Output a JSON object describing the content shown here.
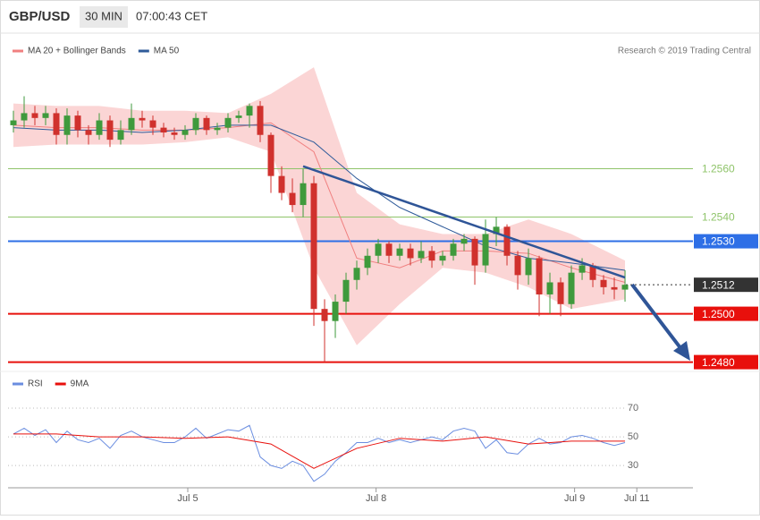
{
  "header": {
    "symbol": "GBP/USD",
    "interval": "30 MIN",
    "time": "07:00:43 CET"
  },
  "chart_data": [
    {
      "type": "candlestick",
      "source": "Research © 2019 Trading Central",
      "xlim": [
        -0.5,
        63.33
      ],
      "ylim": [
        1.2478,
        1.2615
      ],
      "xticks": [
        {
          "value": 16.25,
          "label": "Jul 5"
        },
        {
          "value": 33.8,
          "label": "Jul 8"
        },
        {
          "value": 52.3,
          "label": "Jul 9"
        },
        {
          "value": 58.1,
          "label": "Jul 11"
        }
      ],
      "up_color": "#3f9a3c",
      "down_color": "#d0312d",
      "candles": {
        "x": [
          0,
          1,
          2,
          3,
          4,
          5,
          6,
          7,
          8,
          9,
          10,
          11,
          12,
          13,
          14,
          15,
          16,
          17,
          18,
          19,
          20,
          21,
          22,
          23,
          24,
          25,
          26,
          27,
          28,
          29,
          30,
          31,
          32,
          33,
          34,
          35,
          36,
          37,
          38,
          39,
          40,
          41,
          42,
          43,
          44,
          45,
          46,
          47,
          48,
          49,
          50,
          51,
          52,
          53,
          54,
          55,
          56,
          57
        ],
        "open": [
          1.2578,
          1.258,
          1.2583,
          1.2581,
          1.2583,
          1.2574,
          1.2582,
          1.2576,
          1.2574,
          1.258,
          1.2572,
          1.2576,
          1.2581,
          1.258,
          1.2577,
          1.2575,
          1.2574,
          1.2576,
          1.2581,
          1.2576,
          1.2577,
          1.2581,
          1.2582,
          1.2586,
          1.2574,
          1.2557,
          1.255,
          1.2545,
          1.2554,
          1.2502,
          1.2497,
          1.2505,
          1.2514,
          1.2519,
          1.2524,
          1.2529,
          1.2524,
          1.2527,
          1.2523,
          1.2526,
          1.2522,
          1.2524,
          1.2529,
          1.2531,
          1.252,
          1.2533,
          1.2536,
          1.2524,
          1.2516,
          1.2523,
          1.2508,
          1.2513,
          1.2504,
          1.2517,
          1.252,
          1.2514,
          1.2511,
          1.251
        ],
        "high": [
          1.2584,
          1.259,
          1.2586,
          1.2586,
          1.2585,
          1.2585,
          1.2584,
          1.2578,
          1.2583,
          1.2582,
          1.258,
          1.2587,
          1.2584,
          1.2582,
          1.2579,
          1.2577,
          1.2578,
          1.2583,
          1.2582,
          1.2579,
          1.2583,
          1.2584,
          1.2587,
          1.2588,
          1.2575,
          1.2561,
          1.2556,
          1.256,
          1.2557,
          1.2506,
          1.2508,
          1.2517,
          1.2522,
          1.2527,
          1.2531,
          1.253,
          1.2529,
          1.2529,
          1.253,
          1.2528,
          1.2526,
          1.2531,
          1.2533,
          1.2532,
          1.2539,
          1.254,
          1.2537,
          1.2526,
          1.2527,
          1.2524,
          1.2517,
          1.2515,
          1.252,
          1.2523,
          1.2521,
          1.2516,
          1.2515,
          1.2518
        ],
        "low": [
          1.2575,
          1.2577,
          1.2578,
          1.2578,
          1.257,
          1.257,
          1.2573,
          1.257,
          1.2572,
          1.2569,
          1.257,
          1.2574,
          1.2577,
          1.2574,
          1.2573,
          1.2572,
          1.2572,
          1.2574,
          1.2574,
          1.2574,
          1.2575,
          1.2579,
          1.2577,
          1.2571,
          1.255,
          1.2547,
          1.2542,
          1.254,
          1.2495,
          1.248,
          1.249,
          1.25,
          1.251,
          1.2516,
          1.2521,
          1.2521,
          1.2522,
          1.252,
          1.2521,
          1.2519,
          1.252,
          1.2522,
          1.2526,
          1.2512,
          1.2517,
          1.2528,
          1.252,
          1.251,
          1.2512,
          1.2499,
          1.25,
          1.2499,
          1.2502,
          1.2514,
          1.2511,
          1.2508,
          1.2506,
          1.2505
        ],
        "close": [
          1.258,
          1.2583,
          1.2581,
          1.2583,
          1.2574,
          1.2582,
          1.2576,
          1.2574,
          1.258,
          1.2572,
          1.2576,
          1.2581,
          1.258,
          1.2577,
          1.2575,
          1.2574,
          1.2576,
          1.2581,
          1.2576,
          1.2577,
          1.2581,
          1.2582,
          1.2586,
          1.2574,
          1.2557,
          1.255,
          1.2545,
          1.2554,
          1.2502,
          1.2497,
          1.2505,
          1.2514,
          1.2519,
          1.2524,
          1.2529,
          1.2524,
          1.2527,
          1.2523,
          1.2526,
          1.2522,
          1.2524,
          1.2529,
          1.2531,
          1.252,
          1.2533,
          1.2536,
          1.2524,
          1.2516,
          1.2523,
          1.2508,
          1.2513,
          1.2504,
          1.2517,
          1.252,
          1.2514,
          1.2511,
          1.251,
          1.2512
        ]
      },
      "series": [
        {
          "name": "MA 20 + Bollinger Bands",
          "color": "#f08080",
          "band_color": "#fbd5d5",
          "x": [
            0,
            4,
            8,
            12,
            16,
            20,
            24,
            28,
            32,
            36,
            40,
            44,
            48,
            52,
            57
          ],
          "values": [
            1.2578,
            1.2577,
            1.2577,
            1.2576,
            1.2576,
            1.2577,
            1.2579,
            1.2567,
            1.2523,
            1.2519,
            1.2526,
            1.2526,
            1.2525,
            1.2519,
            1.2513
          ],
          "upper": [
            1.2587,
            1.2586,
            1.2586,
            1.2584,
            1.2584,
            1.2583,
            1.2591,
            1.2602,
            1.255,
            1.2537,
            1.2533,
            1.2533,
            1.2539,
            1.2533,
            1.2522
          ],
          "lower": [
            1.2569,
            1.257,
            1.257,
            1.257,
            1.2571,
            1.2573,
            1.2567,
            1.2519,
            1.2487,
            1.2504,
            1.2519,
            1.2517,
            1.2511,
            1.2502,
            1.2506
          ]
        },
        {
          "name": "MA 50",
          "color": "#2f5b9a",
          "x": [
            0,
            4,
            8,
            12,
            16,
            20,
            24,
            28,
            32,
            36,
            40,
            44,
            48,
            52,
            57
          ],
          "values": [
            1.2577,
            1.2576,
            1.2576,
            1.2575,
            1.2576,
            1.2578,
            1.2578,
            1.2571,
            1.2556,
            1.2544,
            1.2536,
            1.2528,
            1.2523,
            1.2521,
            1.2518
          ]
        }
      ],
      "trendline": {
        "x": [
          27,
          57
        ],
        "values": [
          1.2561,
          1.2515
        ],
        "color": "#2f5597"
      },
      "levels": [
        {
          "value": 1.256,
          "label": "1.2560",
          "color": "#8fc46a",
          "boxed": false
        },
        {
          "value": 1.254,
          "label": "1.2540",
          "color": "#8fc46a",
          "boxed": false
        },
        {
          "value": 1.253,
          "label": "1.2530",
          "color": "#2e6fe6",
          "boxed": true
        },
        {
          "value": 1.2512,
          "label": "1.2512",
          "color": "#333333",
          "boxed": true,
          "dotted": true
        },
        {
          "value": 1.25,
          "label": "1.2500",
          "color": "#e8100c",
          "boxed": true
        },
        {
          "value": 1.248,
          "label": "1.2480",
          "color": "#e8100c",
          "boxed": true
        }
      ]
    },
    {
      "type": "line",
      "xlim": [
        -0.5,
        63.33
      ],
      "ylim": [
        14.5,
        80
      ],
      "yticks": [
        30,
        50,
        70
      ],
      "series": [
        {
          "name": "RSI",
          "color": "#6a8de0",
          "x": [
            0,
            1,
            2,
            3,
            4,
            5,
            6,
            7,
            8,
            9,
            10,
            11,
            12,
            13,
            14,
            15,
            16,
            17,
            18,
            19,
            20,
            21,
            22,
            23,
            24,
            25,
            26,
            27,
            28,
            29,
            30,
            31,
            32,
            33,
            34,
            35,
            36,
            37,
            38,
            39,
            40,
            41,
            42,
            43,
            44,
            45,
            46,
            47,
            48,
            49,
            50,
            51,
            52,
            53,
            54,
            55,
            56,
            57
          ],
          "values": [
            52,
            56,
            51,
            55,
            46,
            54,
            48,
            46,
            49,
            42,
            51,
            54,
            50,
            48,
            46,
            46,
            50,
            56,
            49,
            52,
            55,
            54,
            58,
            36,
            30,
            28,
            33,
            30,
            19,
            24,
            33,
            39,
            46,
            46,
            49,
            46,
            48,
            46,
            48,
            50,
            48,
            54,
            56,
            54,
            42,
            48,
            39,
            38,
            45,
            49,
            45,
            46,
            50,
            51,
            49,
            46,
            44,
            46
          ]
        },
        {
          "name": "9MA",
          "color": "#e8100c",
          "x": [
            0,
            4,
            8,
            12,
            16,
            20,
            24,
            28,
            32,
            36,
            40,
            44,
            48,
            52,
            57
          ],
          "values": [
            52,
            52,
            50,
            50,
            49,
            50,
            45,
            28,
            42,
            49,
            47,
            50,
            45,
            47,
            47
          ]
        }
      ]
    }
  ]
}
